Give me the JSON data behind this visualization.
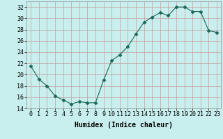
{
  "x": [
    0,
    1,
    2,
    3,
    4,
    5,
    6,
    7,
    8,
    9,
    10,
    11,
    12,
    13,
    14,
    15,
    16,
    17,
    18,
    19,
    20,
    21,
    22,
    23
  ],
  "y": [
    21.5,
    19.2,
    18.0,
    16.2,
    15.5,
    14.8,
    15.2,
    15.0,
    15.0,
    19.0,
    22.5,
    23.5,
    25.0,
    27.2,
    29.3,
    30.2,
    31.0,
    30.5,
    32.0,
    32.0,
    31.2,
    31.2,
    27.8,
    27.5
  ],
  "title": "",
  "xlabel": "Humidex (Indice chaleur)",
  "ylabel": "",
  "ylim": [
    14,
    33
  ],
  "yticks": [
    14,
    16,
    18,
    20,
    22,
    24,
    26,
    28,
    30,
    32
  ],
  "xticks": [
    0,
    1,
    2,
    3,
    4,
    5,
    6,
    7,
    8,
    9,
    10,
    11,
    12,
    13,
    14,
    15,
    16,
    17,
    18,
    19,
    20,
    21,
    22,
    23
  ],
  "line_color": "#1a6655",
  "marker": "D",
  "marker_size": 2.5,
  "bg_color": "#c8eeed",
  "grid_color": "#c4a0a0",
  "title_fontsize": 7,
  "label_fontsize": 7,
  "tick_fontsize": 6
}
